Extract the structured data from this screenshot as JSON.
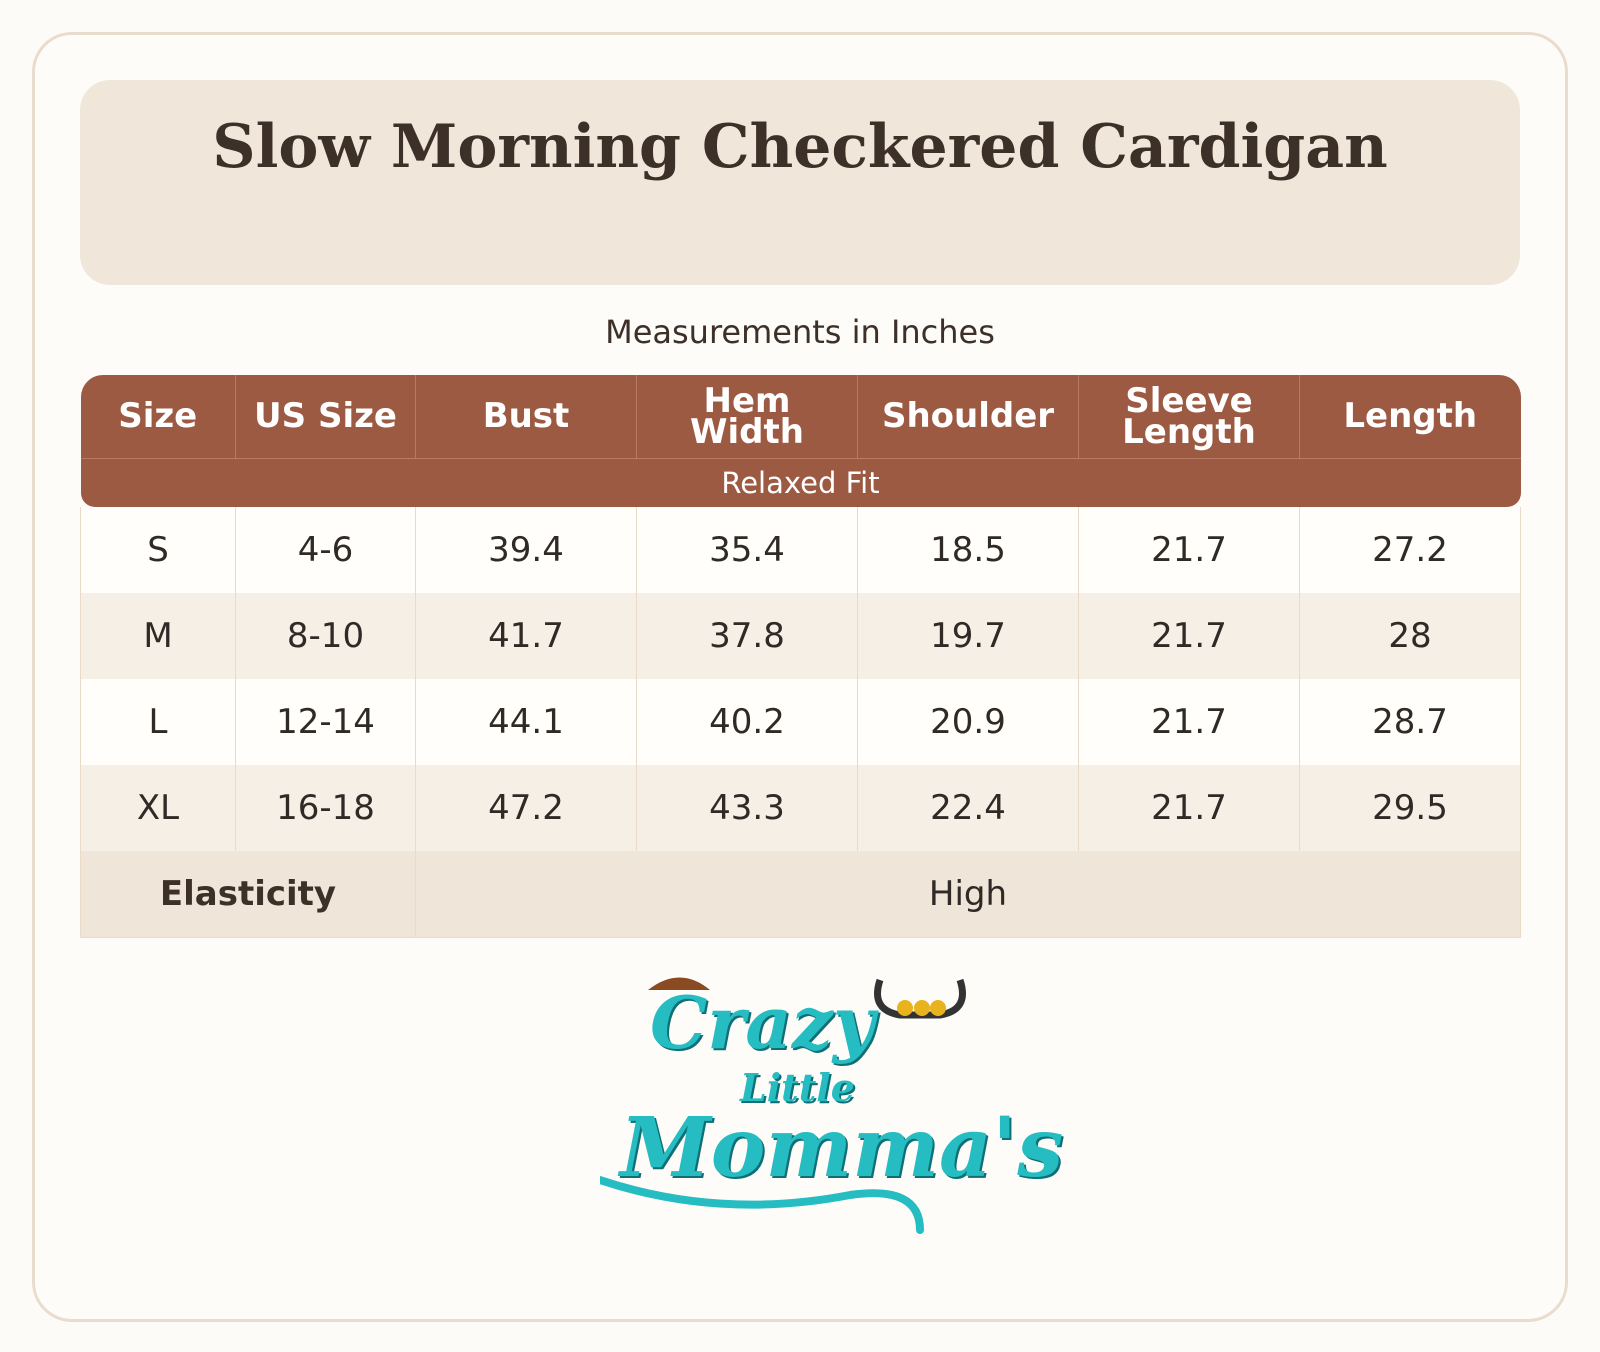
{
  "header": {
    "title": "Slow Morning Checkered Cardigan"
  },
  "subtitle": "Measurements in Inches",
  "table": {
    "columns": [
      "Size",
      "US Size",
      "Bust",
      "Hem\nWidth",
      "Shoulder",
      "Sleeve\nLength",
      "Length"
    ],
    "fit": "Relaxed Fit",
    "rows": [
      [
        "S",
        "4-6",
        "39.4",
        "35.4",
        "18.5",
        "21.7",
        "27.2"
      ],
      [
        "M",
        "8-10",
        "41.7",
        "37.8",
        "19.7",
        "21.7",
        "28"
      ],
      [
        "L",
        "12-14",
        "44.1",
        "40.2",
        "20.9",
        "21.7",
        "28.7"
      ],
      [
        "XL",
        "16-18",
        "47.2",
        "43.3",
        "22.4",
        "21.7",
        "29.5"
      ]
    ],
    "elasticity": {
      "label": "Elasticity",
      "value": "High"
    }
  },
  "logo": {
    "lines": [
      "Crazy",
      "Little",
      "Momma's"
    ]
  }
}
